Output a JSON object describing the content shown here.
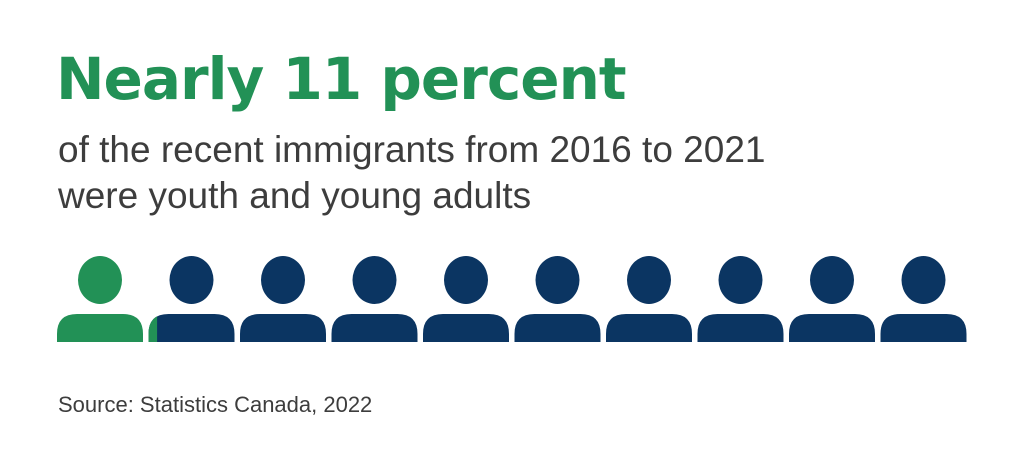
{
  "headline": "Nearly 11 percent",
  "subtitle_lines": [
    "of the recent immigrants from 2016 to 2021",
    "were youth and young adults"
  ],
  "source": "Source: Statistics Canada, 2022",
  "colors": {
    "highlight": "#229156",
    "base": "#0b3562",
    "headline": "#229156"
  },
  "chart_data": {
    "type": "pictogram",
    "icon": "person-icon",
    "total_icons": 10,
    "highlighted_value_icons": 1.1,
    "highlight_label": "Nearly 11 percent"
  }
}
